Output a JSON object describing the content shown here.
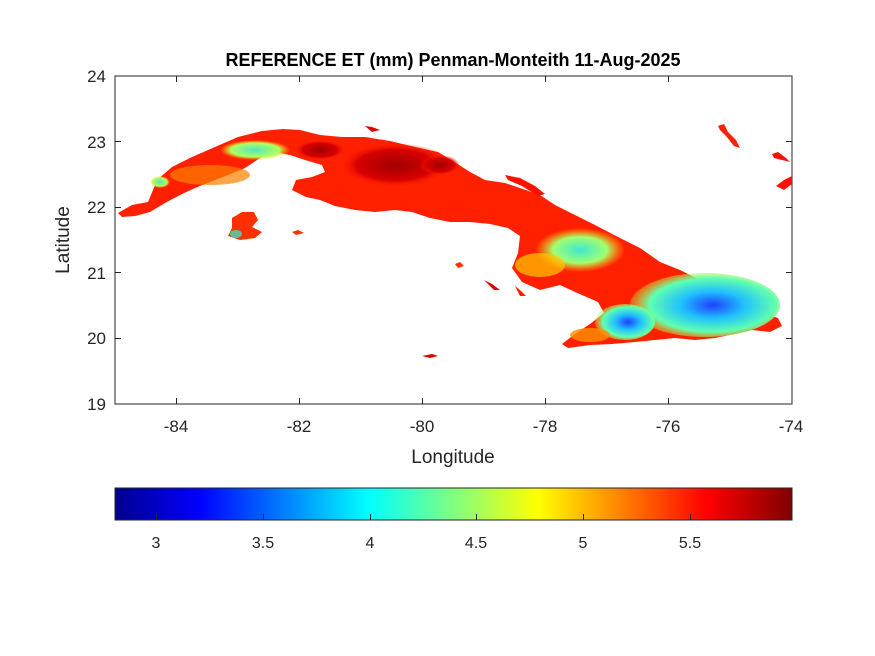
{
  "title": "REFERENCE ET (mm) Penman-Monteith 11-Aug-2025",
  "chart_data": {
    "type": "heatmap",
    "title": "REFERENCE ET (mm) Penman-Monteith 11-Aug-2025",
    "xlabel": "Longitude",
    "ylabel": "Latitude",
    "xlim": [
      -85,
      -74
    ],
    "ylim": [
      19,
      24
    ],
    "xticks": [
      -84,
      -82,
      -80,
      -78,
      -76,
      -74
    ],
    "yticks": [
      19,
      20,
      21,
      22,
      23,
      24
    ],
    "xtick_labels": [
      "-84",
      "-82",
      "-80",
      "-78",
      "-76",
      "-74"
    ],
    "ytick_labels": [
      "19",
      "20",
      "21",
      "22",
      "23",
      "24"
    ],
    "colorbar": {
      "orientation": "horizontal",
      "placement": "below",
      "colormap": "jet",
      "range": [
        2.8,
        5.95
      ],
      "ticks": [
        3,
        3.5,
        4,
        4.5,
        5,
        5.5
      ],
      "tick_labels": [
        "3",
        "3.5",
        "4",
        "4.5",
        "5",
        "5.5"
      ]
    },
    "grid": false
  },
  "colors": {
    "jet_dark_blue": "#00008f",
    "jet_blue": "#0000ff",
    "jet_cyan": "#00ffff",
    "jet_yellow": "#ffff00",
    "jet_red": "#ff0000",
    "jet_dark_red": "#800000"
  }
}
